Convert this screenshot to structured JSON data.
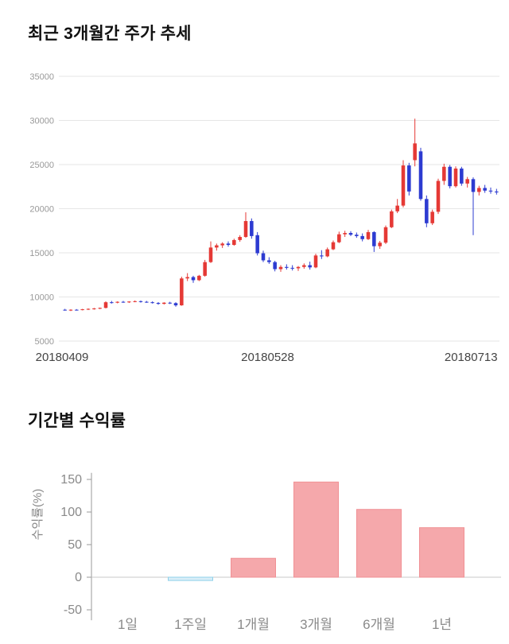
{
  "chart_data": [
    {
      "type": "candlestick",
      "title": "최근 3개월간 주가 추세",
      "x_tick_labels": [
        "20180409",
        "20180528",
        "20180713"
      ],
      "y_ticks": [
        5000,
        10000,
        15000,
        20000,
        25000,
        30000,
        35000
      ],
      "ylim": [
        5000,
        35000
      ],
      "grid": "horizontal",
      "legend": "none",
      "up_color": "#e53935",
      "down_color": "#2d3bd1",
      "grid_color": "#e6e6e6",
      "y_tick_color": "#999999",
      "x_tick_color": "#444444",
      "candles_ohlc": [
        [
          8550,
          8650,
          8450,
          8500
        ],
        [
          8500,
          8600,
          8400,
          8550
        ],
        [
          8550,
          8620,
          8460,
          8520
        ],
        [
          8520,
          8650,
          8480,
          8600
        ],
        [
          8600,
          8700,
          8520,
          8650
        ],
        [
          8650,
          8760,
          8560,
          8700
        ],
        [
          8700,
          8800,
          8620,
          8760
        ],
        [
          8760,
          9500,
          8700,
          9400
        ],
        [
          9400,
          9550,
          9250,
          9350
        ],
        [
          9350,
          9500,
          9280,
          9450
        ],
        [
          9450,
          9550,
          9350,
          9420
        ],
        [
          9420,
          9520,
          9320,
          9480
        ],
        [
          9480,
          9600,
          9400,
          9520
        ],
        [
          9520,
          9600,
          9360,
          9450
        ],
        [
          9450,
          9550,
          9340,
          9400
        ],
        [
          9400,
          9500,
          9250,
          9320
        ],
        [
          9320,
          9420,
          9120,
          9220
        ],
        [
          9220,
          9400,
          9150,
          9350
        ],
        [
          9350,
          9450,
          9200,
          9300
        ],
        [
          9300,
          9400,
          8900,
          9050
        ],
        [
          9050,
          12300,
          9000,
          12100
        ],
        [
          12100,
          12700,
          11800,
          12250
        ],
        [
          12250,
          12400,
          11600,
          11900
        ],
        [
          11900,
          12500,
          11800,
          12400
        ],
        [
          12400,
          14200,
          12300,
          13950
        ],
        [
          13950,
          16300,
          13850,
          15600
        ],
        [
          15600,
          16050,
          15250,
          15850
        ],
        [
          15850,
          16200,
          15550,
          16050
        ],
        [
          16050,
          16300,
          15700,
          15900
        ],
        [
          15900,
          16600,
          15800,
          16450
        ],
        [
          16450,
          17000,
          16250,
          16800
        ],
        [
          16800,
          19600,
          16700,
          18600
        ],
        [
          18600,
          18900,
          16600,
          16900
        ],
        [
          17000,
          17350,
          14700,
          14950
        ],
        [
          14950,
          15250,
          13950,
          14150
        ],
        [
          14150,
          14500,
          13750,
          13950
        ],
        [
          13950,
          14100,
          12900,
          13150
        ],
        [
          13150,
          13600,
          12850,
          13400
        ],
        [
          13400,
          13700,
          13100,
          13300
        ],
        [
          13300,
          13600,
          13000,
          13250
        ],
        [
          13250,
          13500,
          12950,
          13400
        ],
        [
          13400,
          13800,
          13200,
          13600
        ],
        [
          13600,
          14000,
          13100,
          13350
        ],
        [
          13350,
          14900,
          13250,
          14700
        ],
        [
          14700,
          15300,
          14300,
          14600
        ],
        [
          14600,
          15600,
          14500,
          15400
        ],
        [
          15400,
          16400,
          15300,
          16200
        ],
        [
          16200,
          17400,
          16100,
          17100
        ],
        [
          17100,
          17500,
          16800,
          17250
        ],
        [
          17250,
          17450,
          16900,
          17050
        ],
        [
          17050,
          17300,
          16700,
          16900
        ],
        [
          16900,
          17200,
          16300,
          16550
        ],
        [
          16550,
          17600,
          16450,
          17350
        ],
        [
          17350,
          17450,
          15100,
          15750
        ],
        [
          15750,
          16350,
          15450,
          16150
        ],
        [
          16150,
          18100,
          16000,
          17900
        ],
        [
          17900,
          19900,
          17800,
          19700
        ],
        [
          19700,
          21100,
          19500,
          20350
        ],
        [
          20350,
          25500,
          20150,
          24900
        ],
        [
          24900,
          25200,
          21500,
          21950
        ],
        [
          25500,
          30200,
          24800,
          27400
        ],
        [
          26500,
          26900,
          20900,
          21100
        ],
        [
          21100,
          21500,
          17900,
          18350
        ],
        [
          18350,
          19900,
          18150,
          19650
        ],
        [
          19650,
          23400,
          19400,
          23150
        ],
        [
          23150,
          25100,
          22700,
          24750
        ],
        [
          24750,
          24950,
          22300,
          22550
        ],
        [
          22550,
          24800,
          22400,
          24550
        ],
        [
          24550,
          24750,
          22600,
          22850
        ],
        [
          22850,
          23600,
          22400,
          23350
        ],
        [
          23350,
          23550,
          17000,
          21900
        ],
        [
          21900,
          22600,
          21500,
          22350
        ],
        [
          22350,
          22700,
          21800,
          22050
        ],
        [
          22050,
          22400,
          21700,
          21950
        ],
        [
          21950,
          22250,
          21600,
          21850
        ]
      ]
    },
    {
      "type": "bar",
      "title": "기간별 수익률",
      "ylabel": "수익률(%)",
      "categories": [
        "1일",
        "1주일",
        "1개월",
        "3개월",
        "6개월",
        "1년"
      ],
      "values": [
        0,
        -5,
        29,
        146,
        104,
        76
      ],
      "y_ticks": [
        -50,
        0,
        50,
        100,
        150
      ],
      "ylim": [
        -66,
        160
      ],
      "legend": "none",
      "positive_color": "#f5a8ab",
      "positive_border": "#f09094",
      "negative_color": "#d9eef8",
      "negative_border": "#8ed0ea",
      "axis_color": "#999999",
      "zero_line_color": "#c9c9c9",
      "tick_label_color": "#8a8a8a"
    }
  ]
}
